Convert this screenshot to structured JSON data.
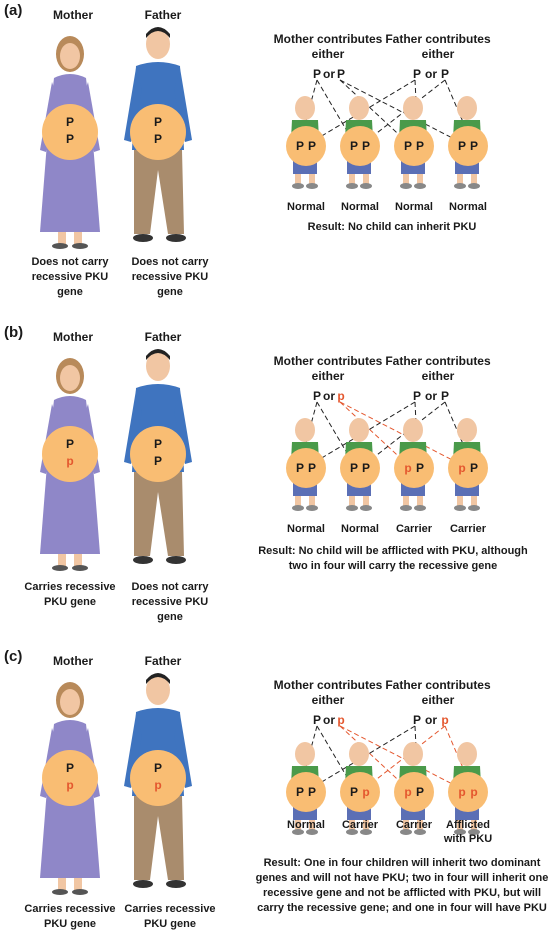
{
  "colors": {
    "circle": "#f9bd73",
    "dress": "#8f87c8",
    "shirt": "#3f74bf",
    "pants": "#a98c6d",
    "child_shirt": "#4a9a4a",
    "recessive": "#e4572e",
    "dominant": "#1a1a1a"
  },
  "panels": [
    {
      "label": "(a)",
      "mother_title": "Mother",
      "father_title": "Father",
      "mother_genes": [
        "P",
        "P"
      ],
      "father_genes": [
        "P",
        "P"
      ],
      "mother_desc": "Does not carry recessive PKU gene",
      "father_desc": "Does not carry recessive PKU gene",
      "mother_contrib": "Mother contributes either",
      "father_contrib": "Father contributes either",
      "mother_alleles": [
        "P",
        "or",
        "P"
      ],
      "father_alleles": [
        "P",
        "or",
        "P"
      ],
      "children": [
        {
          "genes": [
            "P",
            "P"
          ],
          "label": "Normal"
        },
        {
          "genes": [
            "P",
            "P"
          ],
          "label": "Normal"
        },
        {
          "genes": [
            "P",
            "P"
          ],
          "label": "Normal"
        },
        {
          "genes": [
            "P",
            "P"
          ],
          "label": "Normal"
        }
      ],
      "result": "Result: No child can inherit PKU"
    },
    {
      "label": "(b)",
      "mother_title": "Mother",
      "father_title": "Father",
      "mother_genes": [
        "P",
        "p"
      ],
      "father_genes": [
        "P",
        "P"
      ],
      "mother_desc": "Carries recessive PKU gene",
      "father_desc": "Does not carry recessive PKU gene",
      "mother_contrib": "Mother contributes either",
      "father_contrib": "Father contributes either",
      "mother_alleles": [
        "P",
        "or",
        "p"
      ],
      "father_alleles": [
        "P",
        "or",
        "P"
      ],
      "children": [
        {
          "genes": [
            "P",
            "P"
          ],
          "label": "Normal"
        },
        {
          "genes": [
            "P",
            "P"
          ],
          "label": "Normal"
        },
        {
          "genes": [
            "p",
            "P"
          ],
          "label": "Carrier"
        },
        {
          "genes": [
            "p",
            "P"
          ],
          "label": "Carrier"
        }
      ],
      "result": "Result: No child will be afflicted with PKU, although two in four will carry the recessive gene"
    },
    {
      "label": "(c)",
      "mother_title": "Mother",
      "father_title": "Father",
      "mother_genes": [
        "P",
        "p"
      ],
      "father_genes": [
        "P",
        "p"
      ],
      "mother_desc": "Carries recessive PKU gene",
      "father_desc": "Carries recessive PKU gene",
      "mother_contrib": "Mother contributes either",
      "father_contrib": "Father contributes either",
      "mother_alleles": [
        "P",
        "or",
        "p"
      ],
      "father_alleles": [
        "P",
        "or",
        "p"
      ],
      "children": [
        {
          "genes": [
            "P",
            "P"
          ],
          "label": "Normal"
        },
        {
          "genes": [
            "P",
            "p"
          ],
          "label": "Carrier"
        },
        {
          "genes": [
            "p",
            "P"
          ],
          "label": "Carrier"
        },
        {
          "genes": [
            "p",
            "p"
          ],
          "label": "Afflicted with PKU"
        }
      ],
      "result": "Result: One in four children will inherit two dominant genes and will not have PKU; two in four will inherit one recessive gene and not be afflicted with PKU, but will carry the recessive gene; and one in four will have PKU"
    }
  ]
}
